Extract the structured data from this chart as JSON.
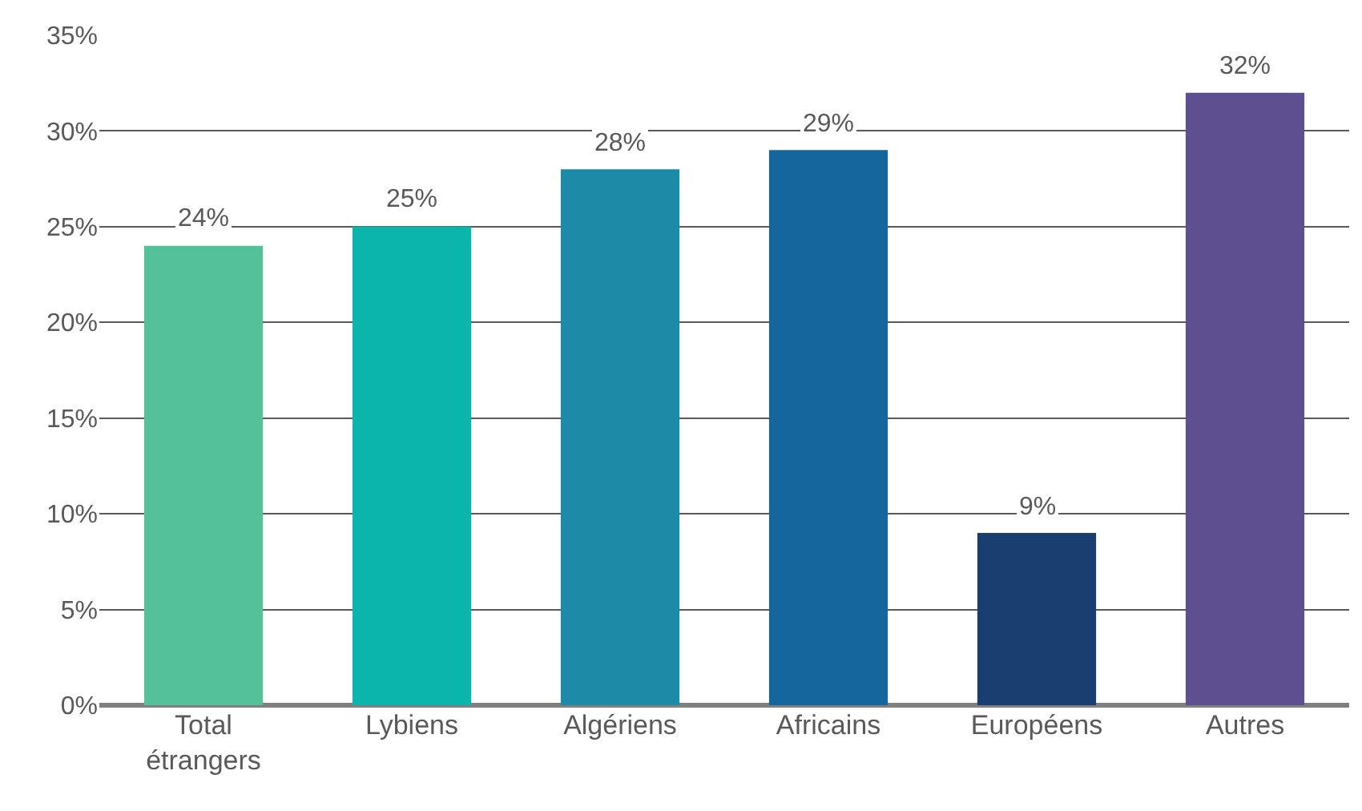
{
  "chart_data": {
    "type": "bar",
    "categories": [
      "Total étrangers",
      "Lybiens",
      "Algériens",
      "Africains",
      "Européens",
      "Autres"
    ],
    "values": [
      24,
      25,
      28,
      29,
      9,
      32
    ],
    "colors": [
      "#55c19a",
      "#0bb5ab",
      "#1d8aa8",
      "#14669c",
      "#1a3e70",
      "#5d4f90"
    ],
    "value_labels": [
      "24%",
      "25%",
      "28%",
      "29%",
      "9%",
      "32%"
    ],
    "ylim": [
      0,
      35
    ],
    "yticks": [
      {
        "value": 0,
        "label": "0%"
      },
      {
        "value": 5,
        "label": "5%"
      },
      {
        "value": 10,
        "label": "10%"
      },
      {
        "value": 15,
        "label": "15%"
      },
      {
        "value": 20,
        "label": "20%"
      },
      {
        "value": 25,
        "label": "25%"
      },
      {
        "value": 30,
        "label": "30%"
      },
      {
        "value": 35,
        "label": "35%"
      }
    ],
    "grid": "y",
    "legend": false
  }
}
